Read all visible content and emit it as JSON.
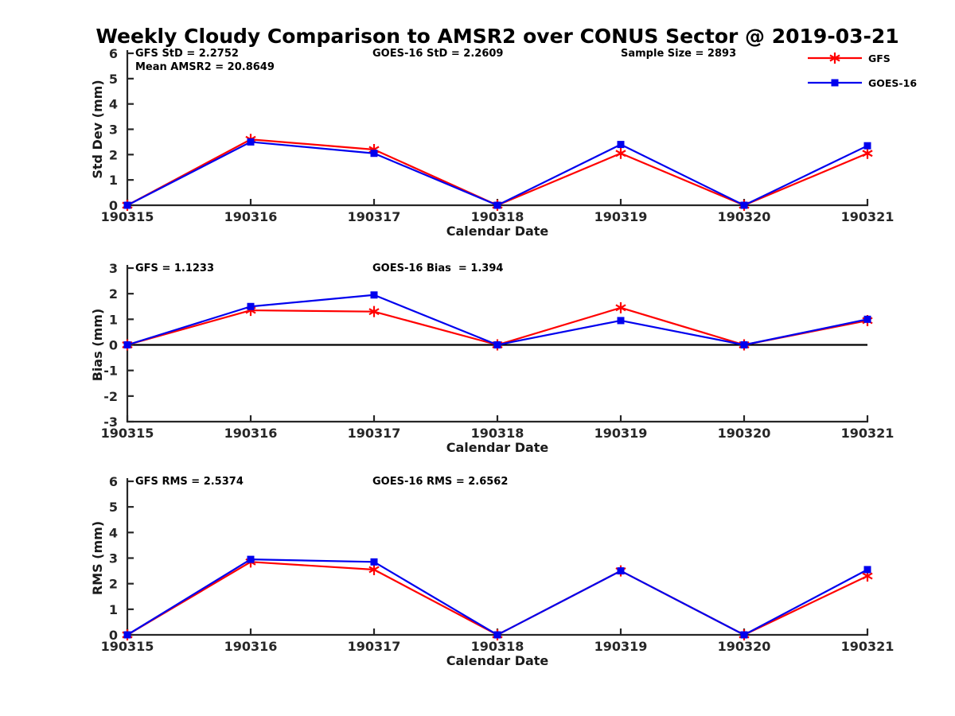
{
  "title": "Weekly Cloudy Comparison to AMSR2 over CONUS Sector @ 2019-03-21",
  "legend": [
    {
      "label": "GFS",
      "color": "#ff0000",
      "marker": "asterisk"
    },
    {
      "label": "GOES-16",
      "color": "#0000ee",
      "marker": "square"
    }
  ],
  "categories": [
    "190315",
    "190316",
    "190317",
    "190318",
    "190319",
    "190320",
    "190321"
  ],
  "axis_style": {
    "axis_color": "#262626",
    "tick_label_color": "#262626",
    "zero_line_color": "#000000"
  },
  "chart_data": [
    {
      "type": "line",
      "ylabel": "Std Dev (mm)",
      "xlabel": "Calendar Date",
      "ylim": [
        0,
        6
      ],
      "ytick_step": 1,
      "grid": false,
      "legend_position": "top-right",
      "zero_line": false,
      "annotations": [
        {
          "pos": "left",
          "text": "GFS StD = 2.2752"
        },
        {
          "pos": "left-below",
          "text": "Mean AMSR2 = 20.8649"
        },
        {
          "pos": "center",
          "text": "GOES-16 StD = 2.2609"
        },
        {
          "pos": "right",
          "text": "Sample Size = 2893"
        }
      ],
      "series": [
        {
          "name": "GFS",
          "color": "#ff0000",
          "marker": "asterisk",
          "values": [
            0,
            2.6,
            2.2,
            0,
            2.05,
            0,
            2.05
          ]
        },
        {
          "name": "GOES-16",
          "color": "#0000ee",
          "marker": "square",
          "values": [
            0,
            2.5,
            2.05,
            0,
            2.4,
            0,
            2.35
          ]
        }
      ]
    },
    {
      "type": "line",
      "ylabel": "Bias (mm)",
      "xlabel": "Calendar Date",
      "ylim": [
        -3,
        3
      ],
      "ytick_step": 1,
      "grid": false,
      "zero_line": true,
      "annotations": [
        {
          "pos": "left",
          "text": "GFS = 1.1233"
        },
        {
          "pos": "center",
          "text": "GOES-16 Bias  = 1.394"
        }
      ],
      "series": [
        {
          "name": "GFS",
          "color": "#ff0000",
          "marker": "asterisk",
          "values": [
            0,
            1.35,
            1.3,
            0,
            1.45,
            0,
            0.95
          ]
        },
        {
          "name": "GOES-16",
          "color": "#0000ee",
          "marker": "square",
          "values": [
            0,
            1.5,
            1.95,
            0,
            0.95,
            0,
            1.0
          ]
        }
      ]
    },
    {
      "type": "line",
      "ylabel": "RMS (mm)",
      "xlabel": "Calendar Date",
      "ylim": [
        0,
        6
      ],
      "ytick_step": 1,
      "grid": false,
      "zero_line": false,
      "annotations": [
        {
          "pos": "left",
          "text": "GFS RMS = 2.5374"
        },
        {
          "pos": "center",
          "text": "GOES-16 RMS = 2.6562"
        }
      ],
      "series": [
        {
          "name": "GFS",
          "color": "#ff0000",
          "marker": "asterisk",
          "values": [
            0,
            2.85,
            2.55,
            0,
            2.5,
            0,
            2.3
          ]
        },
        {
          "name": "GOES-16",
          "color": "#0000ee",
          "marker": "square",
          "values": [
            0,
            2.95,
            2.85,
            0,
            2.5,
            0,
            2.55
          ]
        }
      ]
    }
  ]
}
